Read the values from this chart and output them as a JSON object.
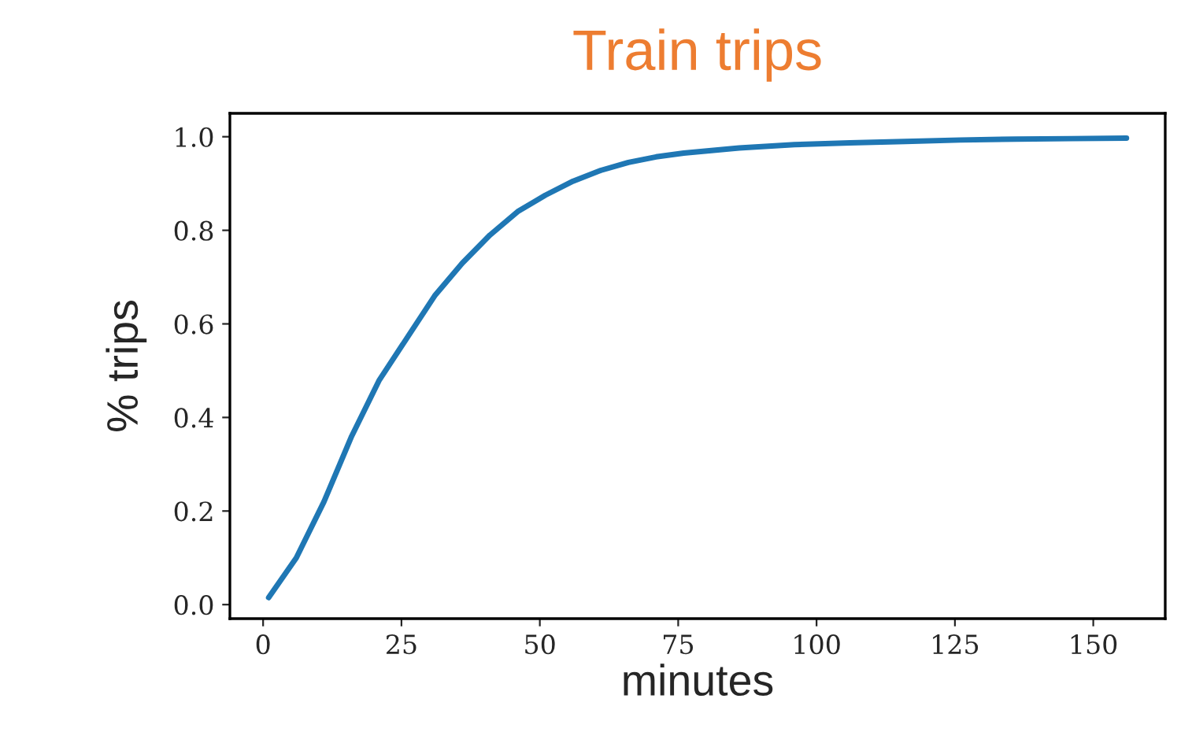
{
  "chart_data": {
    "type": "line",
    "title": "Train trips",
    "xlabel": "minutes",
    "ylabel": "% trips",
    "x": [
      1,
      6,
      11,
      16,
      21,
      26,
      31,
      36,
      41,
      46,
      51,
      56,
      61,
      66,
      71,
      76,
      86,
      96,
      106,
      116,
      126,
      136,
      146,
      156
    ],
    "series": [
      {
        "color": "#1f77b4",
        "values": [
          0.015,
          0.1,
          0.22,
          0.36,
          0.48,
          0.57,
          0.66,
          0.73,
          0.79,
          0.84,
          0.875,
          0.905,
          0.928,
          0.945,
          0.957,
          0.965,
          0.976,
          0.983,
          0.987,
          0.99,
          0.993,
          0.995,
          0.996,
          0.997
        ]
      }
    ],
    "xlim": [
      -6,
      163
    ],
    "ylim": [
      -0.03,
      1.05
    ],
    "xticks": [
      0,
      25,
      50,
      75,
      100,
      125,
      150
    ],
    "yticks": [
      {
        "value": 0,
        "label": "0.0"
      },
      {
        "value": 0.2,
        "label": "0.2"
      },
      {
        "value": 0.4,
        "label": "0.4"
      },
      {
        "value": 0.6,
        "label": "0.6"
      },
      {
        "value": 0.8,
        "label": "0.8"
      },
      {
        "value": 1.0,
        "label": "1.0"
      }
    ],
    "grid": false
  }
}
